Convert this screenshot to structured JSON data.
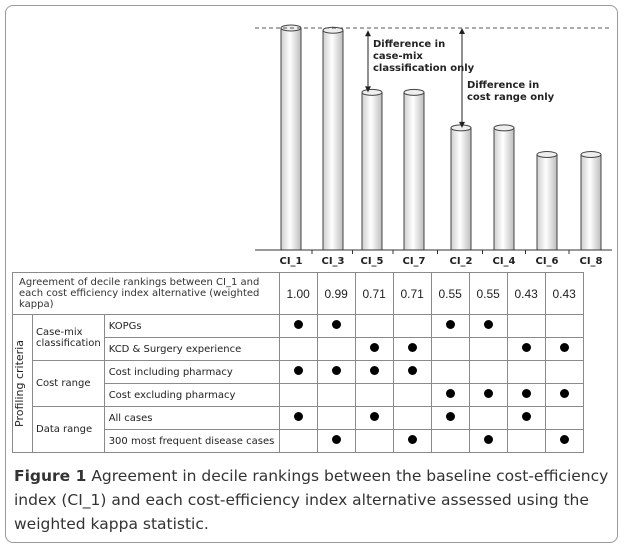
{
  "chart_data": {
    "type": "bar",
    "categories": [
      "CI_1",
      "CI_3",
      "CI_5",
      "CI_7",
      "CI_2",
      "CI_4",
      "CI_6",
      "CI_8"
    ],
    "values": [
      1.0,
      0.99,
      0.71,
      0.71,
      0.55,
      0.55,
      0.43,
      0.43
    ],
    "ylim": [
      0,
      1.0
    ],
    "annotations": [
      {
        "id": "case-mix",
        "text": [
          "Difference in",
          "case-mix",
          "classification only"
        ],
        "from": 0.99,
        "to": 0.71
      },
      {
        "id": "cost-range",
        "text": [
          "Difference in",
          "cost range only"
        ],
        "from": 1.0,
        "to": 0.55
      }
    ],
    "reference_line": 1.0,
    "grid": false,
    "bar_color": "#ffffff",
    "bar_edge_color": "#444444"
  },
  "table": {
    "header_label": "Agreement of decile rankings between CI_1 and each cost efficiency index alternative (weighted kappa)",
    "values": [
      "1.00",
      "0.99",
      "0.71",
      "0.71",
      "0.55",
      "0.55",
      "0.43",
      "0.43"
    ],
    "group_label": "Profiling criteria",
    "rows": [
      {
        "category": "Case-mix classification",
        "label": "KOPGs",
        "marks": [
          1,
          1,
          0,
          0,
          1,
          1,
          0,
          0
        ]
      },
      {
        "category": "",
        "label": "KCD & Surgery experience",
        "marks": [
          0,
          0,
          1,
          1,
          0,
          0,
          1,
          1
        ]
      },
      {
        "category": "Cost range",
        "label": "Cost including pharmacy",
        "marks": [
          1,
          1,
          1,
          1,
          0,
          0,
          0,
          0
        ]
      },
      {
        "category": "",
        "label": "Cost excluding pharmacy",
        "marks": [
          0,
          0,
          0,
          0,
          1,
          1,
          1,
          1
        ]
      },
      {
        "category": "Data range",
        "label": "All cases",
        "marks": [
          1,
          0,
          1,
          0,
          1,
          0,
          1,
          0
        ]
      },
      {
        "category": "",
        "label": "300 most frequent disease cases",
        "marks": [
          0,
          1,
          0,
          1,
          0,
          1,
          0,
          1
        ]
      }
    ]
  },
  "caption": {
    "label": "Figure 1",
    "text": "Agreement in decile rankings between the baseline cost-efficiency index (CI_1) and each cost-efficiency index alternative assessed using the weighted kappa statistic",
    "end": "."
  }
}
